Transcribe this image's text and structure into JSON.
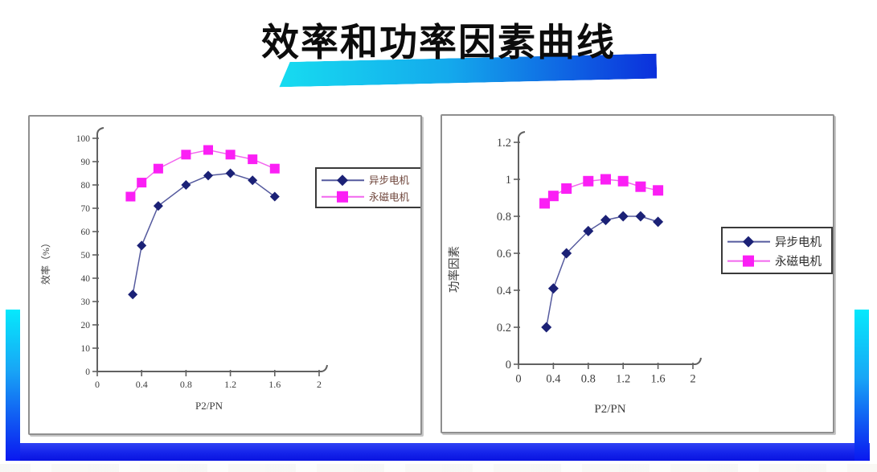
{
  "slide": {
    "title": "效率和功率因素曲线",
    "accent_colors": {
      "underline_from": "#17dcf0",
      "underline_to": "#0b30dc",
      "frame_top": "#06e9fc",
      "frame_bottom": "#0a18f0"
    }
  },
  "chart_data": [
    {
      "type": "line",
      "title": "",
      "xlabel": "P2/PN",
      "ylabel": "效率（%）",
      "xlim": [
        0,
        2
      ],
      "ylim": [
        0,
        100
      ],
      "xtick_values": [
        0,
        0.4,
        0.8,
        1.2,
        1.6,
        2
      ],
      "xticks": [
        "0",
        "0.4",
        "0.8",
        "1.2",
        "1.6",
        "2"
      ],
      "ytick_values": [
        0,
        10,
        20,
        30,
        40,
        50,
        60,
        70,
        80,
        90,
        100
      ],
      "yticks": [
        "0",
        "10",
        "20",
        "30",
        "40",
        "50",
        "60",
        "70",
        "80",
        "90",
        "100"
      ],
      "grid": false,
      "legend_position": "right-top",
      "series": [
        {
          "name": "异步电机",
          "marker": "diamond",
          "marker_color": "#1b2176",
          "line_color": "#555a9e",
          "x": [
            0.32,
            0.4,
            0.55,
            0.8,
            1.0,
            1.2,
            1.4,
            1.6
          ],
          "y": [
            33,
            54,
            71,
            80,
            84,
            85,
            82,
            75
          ]
        },
        {
          "name": "永磁电机",
          "marker": "square",
          "marker_color": "#fb1ff5",
          "line_color": "#f266ee",
          "x": [
            0.3,
            0.4,
            0.55,
            0.8,
            1.0,
            1.2,
            1.4,
            1.6
          ],
          "y": [
            75,
            81,
            87,
            93,
            95,
            93,
            91,
            87
          ]
        }
      ]
    },
    {
      "type": "line",
      "title": "",
      "xlabel": "P2/PN",
      "ylabel": "功率因素",
      "xlim": [
        0,
        2
      ],
      "ylim": [
        0,
        1.2
      ],
      "xtick_values": [
        0,
        0.4,
        0.8,
        1.2,
        1.6,
        2
      ],
      "xticks": [
        "0",
        "0.4",
        "0.8",
        "1.2",
        "1.6",
        "2"
      ],
      "ytick_values": [
        0,
        0.2,
        0.4,
        0.6,
        0.8,
        1,
        1.2
      ],
      "yticks": [
        "0",
        "0.2",
        "0.4",
        "0.6",
        "0.8",
        "1",
        "1.2"
      ],
      "grid": false,
      "legend_position": "right-middle",
      "series": [
        {
          "name": "异步电机",
          "marker": "diamond",
          "marker_color": "#1b2176",
          "line_color": "#555a9e",
          "x": [
            0.32,
            0.4,
            0.55,
            0.8,
            1.0,
            1.2,
            1.4,
            1.6
          ],
          "y": [
            0.2,
            0.41,
            0.6,
            0.72,
            0.78,
            0.8,
            0.8,
            0.77
          ]
        },
        {
          "name": "永磁电机",
          "marker": "square",
          "marker_color": "#fb1ff5",
          "line_color": "#f266ee",
          "x": [
            0.3,
            0.4,
            0.55,
            0.8,
            1.0,
            1.2,
            1.4,
            1.6
          ],
          "y": [
            0.87,
            0.91,
            0.95,
            0.99,
            1.0,
            0.99,
            0.96,
            0.94
          ]
        }
      ]
    }
  ]
}
